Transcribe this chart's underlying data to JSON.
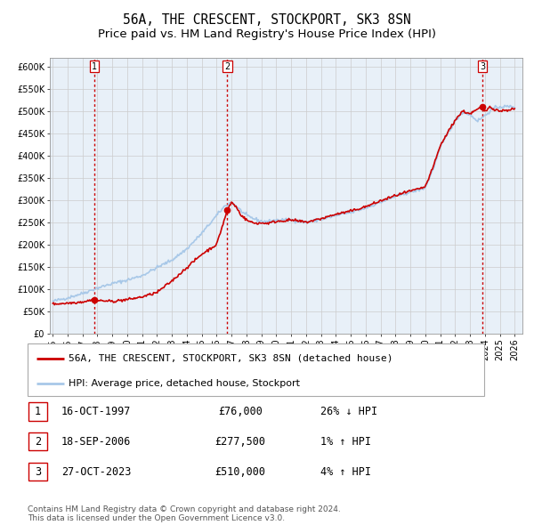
{
  "title": "56A, THE CRESCENT, STOCKPORT, SK3 8SN",
  "subtitle": "Price paid vs. HM Land Registry's House Price Index (HPI)",
  "xlim": [
    1994.8,
    2026.5
  ],
  "ylim": [
    0,
    620000
  ],
  "yticks": [
    0,
    50000,
    100000,
    150000,
    200000,
    250000,
    300000,
    350000,
    400000,
    450000,
    500000,
    550000,
    600000
  ],
  "ytick_labels": [
    "£0",
    "£50K",
    "£100K",
    "£150K",
    "£200K",
    "£250K",
    "£300K",
    "£350K",
    "£400K",
    "£450K",
    "£500K",
    "£550K",
    "£600K"
  ],
  "xticks": [
    1995,
    1996,
    1997,
    1998,
    1999,
    2000,
    2001,
    2002,
    2003,
    2004,
    2005,
    2006,
    2007,
    2008,
    2009,
    2010,
    2011,
    2012,
    2013,
    2014,
    2015,
    2016,
    2017,
    2018,
    2019,
    2020,
    2021,
    2022,
    2023,
    2024,
    2025,
    2026
  ],
  "sale_dates": [
    1997.79,
    2006.72,
    2023.82
  ],
  "sale_prices": [
    76000,
    277500,
    510000
  ],
  "sale_labels": [
    "1",
    "2",
    "3"
  ],
  "hpi_color": "#a8c8e8",
  "price_color": "#cc0000",
  "sale_dot_color": "#cc0000",
  "vline_color": "#cc0000",
  "grid_color": "#cccccc",
  "bg_color": "#e8f0f8",
  "legend_label_price": "56A, THE CRESCENT, STOCKPORT, SK3 8SN (detached house)",
  "legend_label_hpi": "HPI: Average price, detached house, Stockport",
  "table_entries": [
    {
      "num": "1",
      "date": "16-OCT-1997",
      "price": "£76,000",
      "hpi": "26% ↓ HPI"
    },
    {
      "num": "2",
      "date": "18-SEP-2006",
      "price": "£277,500",
      "hpi": "1% ↑ HPI"
    },
    {
      "num": "3",
      "date": "27-OCT-2023",
      "price": "£510,000",
      "hpi": "4% ↑ HPI"
    }
  ],
  "footnote": "Contains HM Land Registry data © Crown copyright and database right 2024.\nThis data is licensed under the Open Government Licence v3.0.",
  "title_fontsize": 10.5,
  "subtitle_fontsize": 9.5,
  "tick_fontsize": 7,
  "legend_fontsize": 8,
  "table_fontsize": 8.5,
  "footnote_fontsize": 6.5
}
